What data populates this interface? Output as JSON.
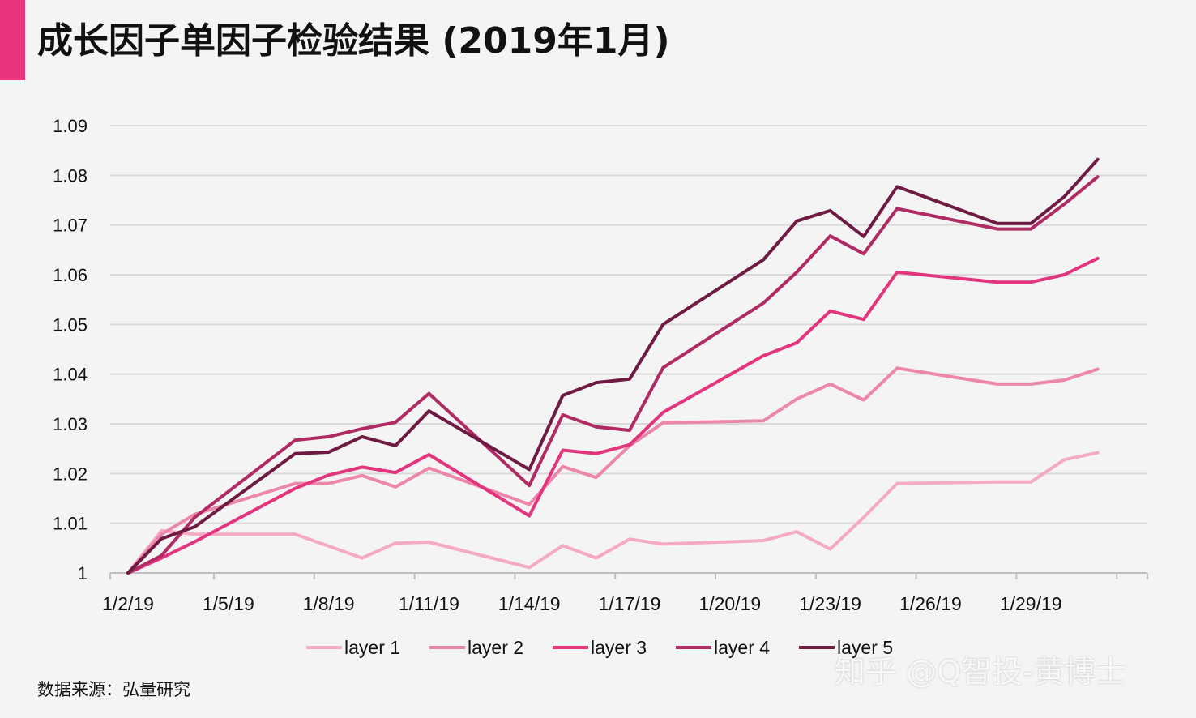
{
  "title": "成长因子单因子检验结果 (2019年1月)",
  "source_note": "数据来源：弘量研究",
  "watermark": "知乎 @Q智投-黄博士",
  "colors": {
    "accent": "#e8347d",
    "grid": "#d9d9d9",
    "axis": "#bfbfbf",
    "text": "#111111"
  },
  "chart_data": {
    "type": "line",
    "title": "",
    "xlabel": "",
    "ylabel": "",
    "ylim": [
      1.0,
      1.09
    ],
    "yticks": [
      "1",
      "1.01",
      "1.02",
      "1.03",
      "1.04",
      "1.05",
      "1.06",
      "1.07",
      "1.08",
      "1.09"
    ],
    "xlim": [
      "2019-01-02",
      "2019-02-01"
    ],
    "xticks": [
      "1/2/19",
      "1/5/19",
      "1/8/19",
      "1/11/19",
      "1/14/19",
      "1/17/19",
      "1/20/19",
      "1/23/19",
      "1/26/19",
      "1/29/19"
    ],
    "grid": true,
    "legend_position": "bottom",
    "x": [
      "2019-01-02",
      "2019-01-03",
      "2019-01-04",
      "2019-01-07",
      "2019-01-08",
      "2019-01-09",
      "2019-01-10",
      "2019-01-11",
      "2019-01-14",
      "2019-01-15",
      "2019-01-16",
      "2019-01-17",
      "2019-01-18",
      "2019-01-21",
      "2019-01-22",
      "2019-01-23",
      "2019-01-24",
      "2019-01-25",
      "2019-01-28",
      "2019-01-29",
      "2019-01-30",
      "2019-01-31"
    ],
    "series": [
      {
        "name": "layer 1",
        "color": "#f4a9c4",
        "values": [
          1.0,
          1.0085,
          1.0078,
          1.0078,
          1.0054,
          1.003,
          1.006,
          1.0062,
          1.0011,
          1.0055,
          1.003,
          1.0068,
          1.0058,
          1.0065,
          1.0083,
          1.0048,
          1.0112,
          1.018,
          1.0183,
          1.0183,
          1.0228,
          1.0242
        ]
      },
      {
        "name": "layer 2",
        "color": "#ed86ab",
        "values": [
          1.0,
          1.0078,
          1.0118,
          1.018,
          1.018,
          1.0196,
          1.0173,
          1.0211,
          1.0138,
          1.0214,
          1.0192,
          1.0256,
          1.0302,
          1.0306,
          1.035,
          1.038,
          1.0348,
          1.0412,
          1.038,
          1.038,
          1.0388,
          1.041
        ]
      },
      {
        "name": "layer 3",
        "color": "#e3357d",
        "values": [
          1.0,
          1.003,
          1.0063,
          1.017,
          1.0197,
          1.0213,
          1.0202,
          1.0238,
          1.0115,
          1.0247,
          1.024,
          1.0258,
          1.0323,
          1.0437,
          1.0463,
          1.0527,
          1.051,
          1.0605,
          1.0585,
          1.0585,
          1.06,
          1.0633
        ]
      },
      {
        "name": "layer 4",
        "color": "#b02a63",
        "values": [
          1.0,
          1.0035,
          1.0112,
          1.0267,
          1.0274,
          1.029,
          1.0303,
          1.0361,
          1.0176,
          1.0318,
          1.0294,
          1.0287,
          1.0413,
          1.0543,
          1.0605,
          1.0678,
          1.0642,
          1.0733,
          1.0692,
          1.0692,
          1.0742,
          1.0797
        ]
      },
      {
        "name": "layer 5",
        "color": "#6e1a43",
        "values": [
          1.0,
          1.0069,
          1.0093,
          1.024,
          1.0243,
          1.0274,
          1.0256,
          1.0326,
          1.0208,
          1.0357,
          1.0383,
          1.039,
          1.05,
          1.063,
          1.0708,
          1.0729,
          1.0677,
          1.0777,
          1.0703,
          1.0703,
          1.0757,
          1.0832
        ]
      }
    ]
  }
}
